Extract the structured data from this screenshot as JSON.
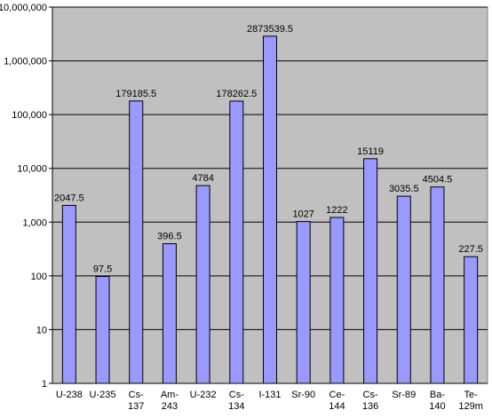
{
  "chart_data": {
    "type": "bar",
    "scale": "log10",
    "ylim": [
      1,
      10000000
    ],
    "y_ticks": [
      {
        "value": 1,
        "label": "1"
      },
      {
        "value": 10,
        "label": "10"
      },
      {
        "value": 100,
        "label": "100"
      },
      {
        "value": 1000,
        "label": "1,000"
      },
      {
        "value": 10000,
        "label": "10,000"
      },
      {
        "value": 100000,
        "label": "100,000"
      },
      {
        "value": 1000000,
        "label": "1,000,000"
      },
      {
        "value": 10000000,
        "label": "10,000,000"
      }
    ],
    "categories": [
      [
        "U-238"
      ],
      [
        "U-235"
      ],
      [
        "Cs-",
        "137"
      ],
      [
        "Am-",
        "243"
      ],
      [
        "U-232"
      ],
      [
        "Cs-",
        "134"
      ],
      [
        "I-131"
      ],
      [
        "Sr-90"
      ],
      [
        "Ce-",
        "144"
      ],
      [
        "Cs-",
        "136"
      ],
      [
        "Sr-89"
      ],
      [
        "Ba-",
        "140"
      ],
      [
        "Te-",
        "129m"
      ]
    ],
    "values": [
      2047.5,
      97.5,
      179185.5,
      396.5,
      4784,
      178262.5,
      2873539.5,
      1027,
      1222,
      15119,
      3035.5,
      4504.5,
      227.5
    ],
    "value_labels": [
      "2047.5",
      "97.5",
      "179185.5",
      "396.5",
      "4784",
      "178262.5",
      "2873539.5",
      "1027",
      "1222",
      "15119",
      "3035.5",
      "4504.5",
      "227.5"
    ],
    "grid": true,
    "colors": {
      "bar_fill": "#9999ff",
      "bar_stroke": "#000000",
      "plot_bg": "#c0c0c0",
      "grid": "#000000"
    }
  }
}
